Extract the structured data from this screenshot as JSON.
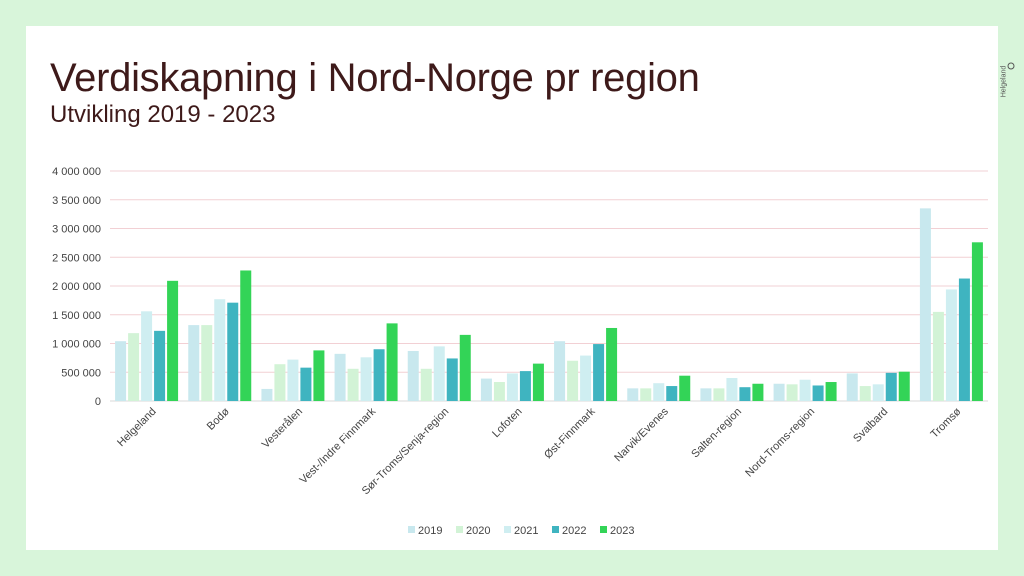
{
  "slide": {
    "title": "Verdiskapning i Nord-Norge pr region",
    "subtitle": "Utvikling 2019 - 2023",
    "logo_text": "Helgeland"
  },
  "colors": {
    "background": "#d8f5da",
    "title": "#3e1a1a",
    "series": [
      "#c8e8ee",
      "#d2f3d6",
      "#cfeef1",
      "#3fb4c0",
      "#33d457"
    ]
  },
  "chart_data": {
    "type": "bar",
    "categories": [
      "Helgeland",
      "Bodø",
      "Vesterålen",
      "Vest-/Indre Finnmark",
      "Sør-Troms/Senja-region",
      "Lofoten",
      "Øst-Finnmark",
      "Narvik/Evenes",
      "Salten-region",
      "Nord-Troms-region",
      "Svalbard",
      "Tromsø"
    ],
    "series": [
      {
        "name": "2019",
        "values": [
          1040000,
          1320000,
          210000,
          820000,
          870000,
          390000,
          1040000,
          220000,
          220000,
          300000,
          480000,
          3350000
        ]
      },
      {
        "name": "2020",
        "values": [
          1180000,
          1320000,
          640000,
          560000,
          560000,
          330000,
          700000,
          220000,
          220000,
          290000,
          260000,
          1550000
        ]
      },
      {
        "name": "2021",
        "values": [
          1560000,
          1770000,
          720000,
          760000,
          950000,
          480000,
          790000,
          310000,
          400000,
          370000,
          290000,
          1940000
        ]
      },
      {
        "name": "2022",
        "values": [
          1220000,
          1710000,
          580000,
          900000,
          740000,
          520000,
          990000,
          260000,
          240000,
          270000,
          490000,
          2130000
        ]
      },
      {
        "name": "2023",
        "values": [
          2090000,
          2270000,
          880000,
          1350000,
          1150000,
          650000,
          1270000,
          440000,
          300000,
          330000,
          510000,
          2760000
        ]
      }
    ],
    "yticks": [
      "0",
      "500 000",
      "1 000 000",
      "1 500 000",
      "2 000 000",
      "2 500 000",
      "3 000 000",
      "3 500 000",
      "4 000 000"
    ],
    "ylim": [
      0,
      4000000
    ],
    "grid": true,
    "legend_position": "bottom"
  }
}
